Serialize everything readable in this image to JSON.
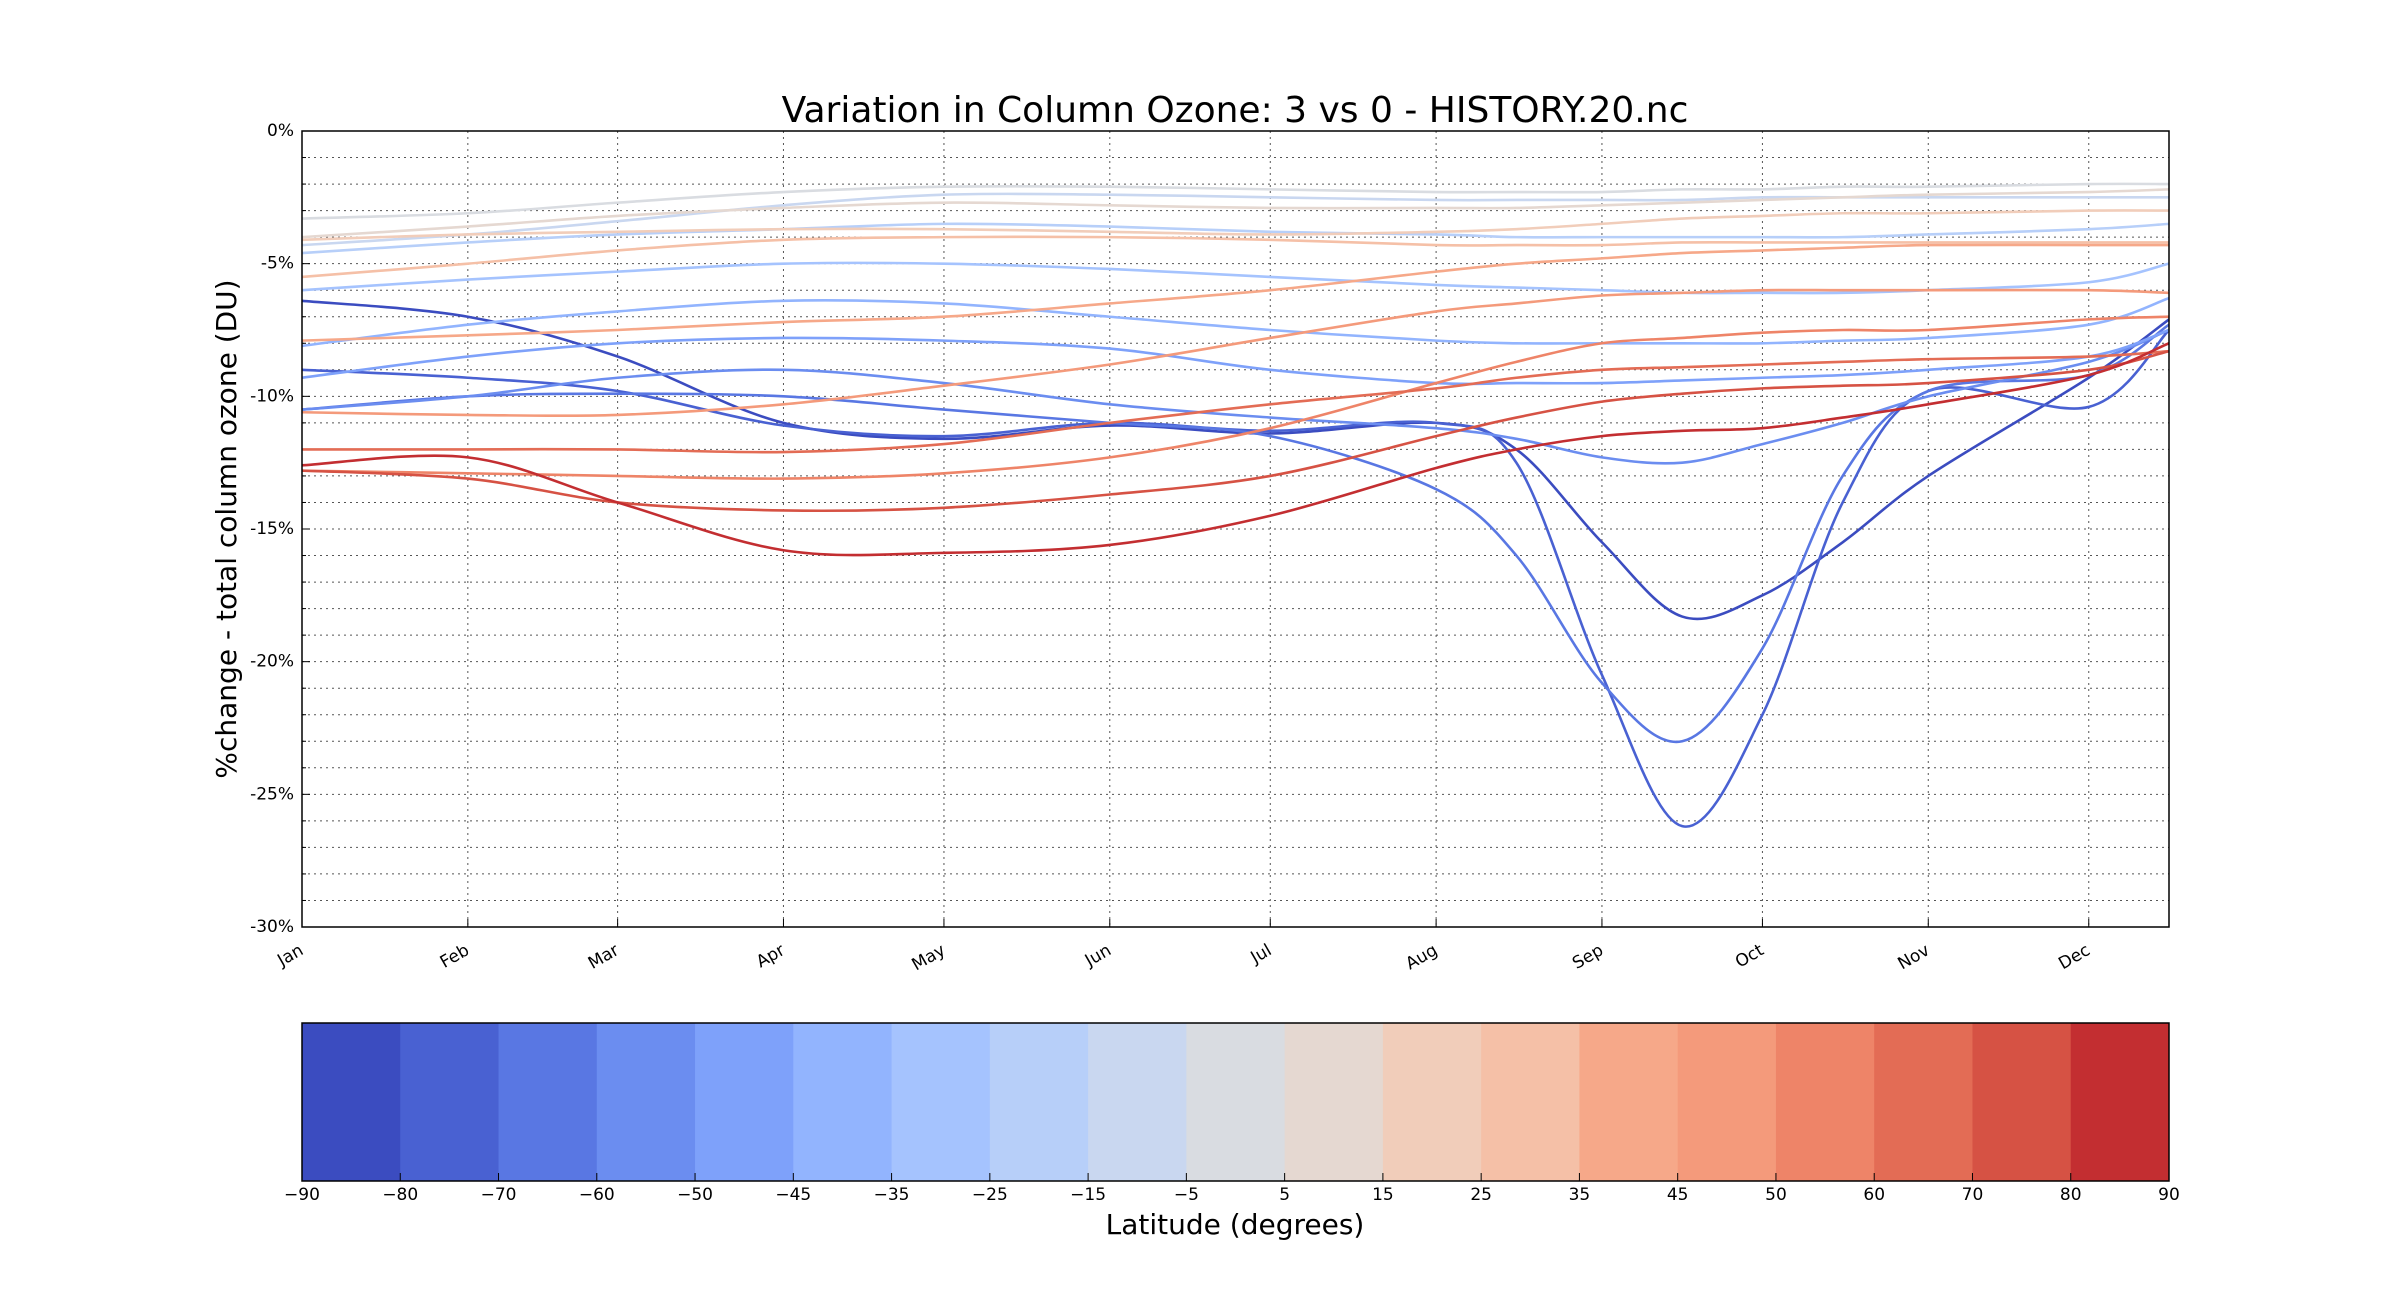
{
  "chart_data": {
    "type": "line",
    "title": "Variation in Column Ozone: 3 vs 0 - HISTORY.20.nc",
    "y_label": "%change - total column ozone (DU)",
    "x": [
      0,
      31,
      59,
      90,
      120,
      151,
      181,
      212,
      227,
      243,
      258,
      273,
      288,
      304,
      334,
      349
    ],
    "xlim": [
      0,
      349
    ],
    "xticks": [
      {
        "value": 0,
        "label": "Jan"
      },
      {
        "value": 31,
        "label": "Feb"
      },
      {
        "value": 59,
        "label": "Mar"
      },
      {
        "value": 90,
        "label": "Apr"
      },
      {
        "value": 120,
        "label": "May"
      },
      {
        "value": 151,
        "label": "Jun"
      },
      {
        "value": 181,
        "label": "Jul"
      },
      {
        "value": 212,
        "label": "Aug"
      },
      {
        "value": 243,
        "label": "Sep"
      },
      {
        "value": 273,
        "label": "Oct"
      },
      {
        "value": 304,
        "label": "Nov"
      },
      {
        "value": 334,
        "label": "Dec"
      }
    ],
    "ylim": [
      -30,
      0
    ],
    "yticks": [
      {
        "value": 0,
        "label": "0%"
      },
      {
        "value": -5,
        "label": "-5%"
      },
      {
        "value": -10,
        "label": "-10%"
      },
      {
        "value": -15,
        "label": "-15%"
      },
      {
        "value": -20,
        "label": "-20%"
      },
      {
        "value": -25,
        "label": "-25%"
      },
      {
        "value": -30,
        "label": "-30%"
      }
    ],
    "yminorticks": [
      -1,
      -2,
      -3,
      -4,
      -6,
      -7,
      -8,
      -9,
      -11,
      -12,
      -13,
      -14,
      -16,
      -17,
      -18,
      -19,
      -21,
      -22,
      -23,
      -24,
      -26,
      -27,
      -28,
      -29
    ],
    "grid": true,
    "series": [
      {
        "color": "#3b4cc0",
        "values": [
          -6.4,
          -7.0,
          -8.5,
          -11.0,
          -11.6,
          -11.1,
          -11.4,
          -11.0,
          -12.0,
          -15.5,
          -18.3,
          -17.5,
          -15.5,
          -13.0,
          -9.3,
          -7.1
        ]
      },
      {
        "color": "#4961d2",
        "values": [
          -9.0,
          -9.3,
          -9.8,
          -11.1,
          -11.5,
          -11.0,
          -11.3,
          -11.0,
          -12.5,
          -20.5,
          -26.2,
          -22.0,
          -14.0,
          -9.8,
          -10.4,
          -7.5
        ]
      },
      {
        "color": "#5977e3",
        "values": [
          -10.5,
          -10.0,
          -9.9,
          -10.0,
          -10.5,
          -11.0,
          -11.5,
          -13.5,
          -16.0,
          -20.8,
          -23.0,
          -19.5,
          -13.0,
          -9.8,
          -9.2,
          -7.3
        ]
      },
      {
        "color": "#6b8df0",
        "values": [
          -10.5,
          -10.0,
          -9.3,
          -9.0,
          -9.5,
          -10.3,
          -10.8,
          -11.2,
          -11.6,
          -12.3,
          -12.5,
          -11.8,
          -11.0,
          -10.0,
          -8.7,
          -7.5
        ]
      },
      {
        "color": "#7ea1fa",
        "values": [
          -9.3,
          -8.5,
          -8.0,
          -7.8,
          -7.9,
          -8.2,
          -9.0,
          -9.5,
          -9.5,
          -9.5,
          -9.4,
          -9.3,
          -9.2,
          -9.0,
          -8.5,
          -7.5
        ]
      },
      {
        "color": "#92b4fe",
        "values": [
          -8.1,
          -7.3,
          -6.8,
          -6.4,
          -6.5,
          -7.0,
          -7.5,
          -7.9,
          -8.0,
          -8.0,
          -8.0,
          -8.0,
          -7.9,
          -7.8,
          -7.3,
          -6.3
        ]
      },
      {
        "color": "#a5c3fe",
        "values": [
          -6.0,
          -5.6,
          -5.3,
          -5.0,
          -5.0,
          -5.2,
          -5.5,
          -5.8,
          -5.9,
          -6.0,
          -6.1,
          -6.1,
          -6.1,
          -6.0,
          -5.7,
          -5.0
        ]
      },
      {
        "color": "#b7cff9",
        "values": [
          -4.6,
          -4.2,
          -3.9,
          -3.7,
          -3.5,
          -3.6,
          -3.8,
          -3.9,
          -4.0,
          -4.0,
          -4.0,
          -4.0,
          -4.0,
          -3.9,
          -3.7,
          -3.5
        ]
      },
      {
        "color": "#c9d7f0",
        "values": [
          -4.3,
          -3.9,
          -3.4,
          -2.8,
          -2.4,
          -2.4,
          -2.5,
          -2.6,
          -2.6,
          -2.6,
          -2.6,
          -2.5,
          -2.5,
          -2.5,
          -2.5,
          -2.5
        ]
      },
      {
        "color": "#d9dce1",
        "values": [
          -3.3,
          -3.1,
          -2.7,
          -2.3,
          -2.1,
          -2.1,
          -2.2,
          -2.3,
          -2.3,
          -2.3,
          -2.2,
          -2.2,
          -2.1,
          -2.1,
          -2.0,
          -2.0
        ]
      },
      {
        "color": "#e5d8d1",
        "values": [
          -4.0,
          -3.6,
          -3.2,
          -2.9,
          -2.7,
          -2.8,
          -2.9,
          -2.9,
          -2.9,
          -2.8,
          -2.7,
          -2.6,
          -2.5,
          -2.4,
          -2.3,
          -2.2
        ]
      },
      {
        "color": "#f1cdba",
        "values": [
          -4.1,
          -3.9,
          -3.8,
          -3.7,
          -3.7,
          -3.8,
          -3.9,
          -3.8,
          -3.7,
          -3.5,
          -3.3,
          -3.2,
          -3.1,
          -3.1,
          -3.0,
          -3.0
        ]
      },
      {
        "color": "#f5c0a7",
        "values": [
          -5.5,
          -5.0,
          -4.5,
          -4.1,
          -4.0,
          -4.0,
          -4.1,
          -4.3,
          -4.3,
          -4.3,
          -4.2,
          -4.2,
          -4.2,
          -4.2,
          -4.2,
          -4.2
        ]
      },
      {
        "color": "#f6a889",
        "values": [
          -7.9,
          -7.7,
          -7.5,
          -7.2,
          -7.0,
          -6.5,
          -6.0,
          -5.3,
          -5.0,
          -4.8,
          -4.6,
          -4.5,
          -4.4,
          -4.3,
          -4.3,
          -4.3
        ]
      },
      {
        "color": "#f49a7b",
        "values": [
          -10.6,
          -10.7,
          -10.7,
          -10.3,
          -9.6,
          -8.8,
          -7.8,
          -6.8,
          -6.5,
          -6.2,
          -6.1,
          -6.0,
          -6.0,
          -6.0,
          -6.0,
          -6.1
        ]
      },
      {
        "color": "#ee8468",
        "values": [
          -12.8,
          -12.9,
          -13.0,
          -13.1,
          -12.9,
          -12.3,
          -11.2,
          -9.5,
          -8.7,
          -8.0,
          -7.8,
          -7.6,
          -7.5,
          -7.5,
          -7.1,
          -7.0
        ]
      },
      {
        "color": "#e36c55",
        "values": [
          -12.0,
          -12.0,
          -12.0,
          -12.1,
          -11.8,
          -11.0,
          -10.3,
          -9.7,
          -9.3,
          -9.0,
          -8.9,
          -8.8,
          -8.7,
          -8.6,
          -8.5,
          -8.3
        ]
      },
      {
        "color": "#d65244",
        "values": [
          -12.8,
          -13.1,
          -14.0,
          -14.3,
          -14.2,
          -13.7,
          -13.0,
          -11.5,
          -10.8,
          -10.2,
          -9.9,
          -9.7,
          -9.6,
          -9.5,
          -9.0,
          -8.3
        ]
      },
      {
        "color": "#c32e31",
        "values": [
          -12.6,
          -12.3,
          -14.0,
          -15.8,
          -15.9,
          -15.6,
          -14.5,
          -12.7,
          -12.0,
          -11.5,
          -11.3,
          -11.2,
          -10.8,
          -10.3,
          -9.2,
          -8.0
        ]
      }
    ],
    "colorbar": {
      "label": "Latitude (degrees)",
      "ticks": [
        {
          "value": -90,
          "label": "−90"
        },
        {
          "value": -80,
          "label": "−80"
        },
        {
          "value": -70,
          "label": "−70"
        },
        {
          "value": -60,
          "label": "−60"
        },
        {
          "value": -50,
          "label": "−50"
        },
        {
          "value": -45,
          "label": "−45"
        },
        {
          "value": -35,
          "label": "−35"
        },
        {
          "value": -25,
          "label": "−25"
        },
        {
          "value": -15,
          "label": "−15"
        },
        {
          "value": -5,
          "label": "−5"
        },
        5,
        15,
        25,
        35,
        45,
        50,
        60,
        70,
        80,
        90
      ],
      "colors": [
        "#3b4cc0",
        "#4961d2",
        "#5977e3",
        "#6b8df0",
        "#7ea1fa",
        "#92b4fe",
        "#a5c3fe",
        "#b7cff9",
        "#c9d7f0",
        "#d9dce1",
        "#e5d8d1",
        "#f1cdba",
        "#f5c0a7",
        "#f6a889",
        "#f49a7b",
        "#ee8468",
        "#e36c55",
        "#d65244",
        "#c32e31"
      ]
    }
  }
}
